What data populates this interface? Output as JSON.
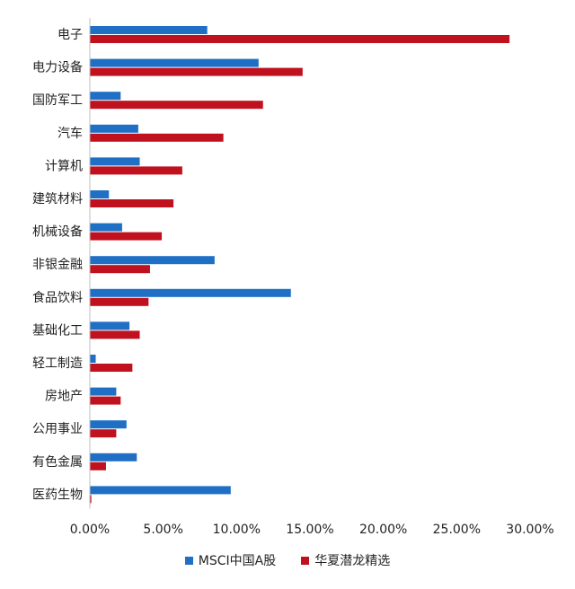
{
  "chart_data": {
    "type": "bar",
    "orientation": "horizontal",
    "categories": [
      "电子",
      "电力设备",
      "国防军工",
      "汽车",
      "计算机",
      "建筑材料",
      "机械设备",
      "非银金融",
      "食品饮料",
      "基础化工",
      "轻工制造",
      "房地产",
      "公用事业",
      "有色金属",
      "医药生物"
    ],
    "series": [
      {
        "name": "MSCI中国A股",
        "color": "#1f6fc5",
        "values": [
          8.0,
          11.5,
          2.1,
          3.3,
          3.4,
          1.3,
          2.2,
          8.5,
          13.7,
          2.7,
          0.4,
          1.8,
          2.5,
          3.2,
          9.6
        ]
      },
      {
        "name": "华夏潜龙精选",
        "color": "#c0111f",
        "values": [
          28.6,
          14.5,
          11.8,
          9.1,
          6.3,
          5.7,
          4.9,
          4.1,
          4.0,
          3.4,
          2.9,
          2.1,
          1.8,
          1.1,
          0.1
        ]
      }
    ],
    "xlim": [
      0,
      30
    ],
    "xticks": [
      "0.00%",
      "5.00%",
      "10.00%",
      "15.00%",
      "20.00%",
      "25.00%",
      "30.00%"
    ],
    "xlabel": "",
    "ylabel": "",
    "title": "",
    "grid": false,
    "legend_position": "bottom"
  }
}
